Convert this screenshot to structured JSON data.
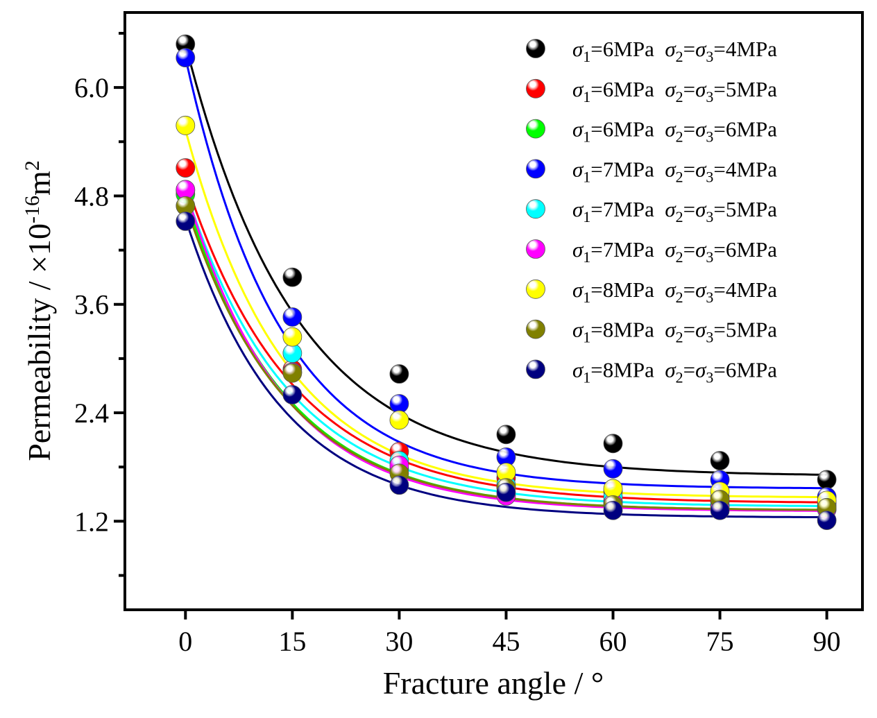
{
  "chart_data": {
    "type": "scatter",
    "title": "",
    "xlabel": "Fracture angle / °",
    "ylabel": {
      "main": "Permeability / ×10",
      "exp": "-16",
      "unit": "m",
      "unit_exp": "2"
    },
    "xlim": [
      -8.5,
      95
    ],
    "ylim": [
      0.22,
      6.83
    ],
    "x_ticks": [
      0,
      15,
      30,
      45,
      60,
      75,
      90
    ],
    "x_tick_labels": [
      "0",
      "15",
      "30",
      "45",
      "60",
      "75",
      "90"
    ],
    "y_ticks": [
      1.2,
      2.4,
      3.6,
      4.8,
      6.0
    ],
    "y_tick_labels": [
      "1.2",
      "2.4",
      "3.6",
      "4.8",
      "6.0"
    ],
    "y_minor_ticks": [
      0.6,
      1.8,
      3.0,
      4.2,
      5.4,
      6.6
    ],
    "grid": false,
    "legend_position": "top-right",
    "x": [
      0,
      15,
      30,
      45,
      60,
      75,
      90
    ],
    "series": [
      {
        "name": "σ1=6MPa σ2=σ3=4MPa",
        "s1": "6",
        "s23": "4",
        "color": "#000000",
        "values": [
          6.48,
          3.9,
          2.83,
          2.16,
          2.06,
          1.87,
          1.66
        ],
        "fit": {
          "a": 4.78,
          "b": 1.7,
          "tau": 15.5
        }
      },
      {
        "name": "σ1=6MPa σ2=σ3=5MPa",
        "s1": "6",
        "s23": "5",
        "color": "#ff0000",
        "values": [
          5.11,
          2.88,
          1.97,
          1.68,
          1.53,
          1.46,
          1.4
        ],
        "fit": {
          "a": 3.57,
          "b": 1.4,
          "tau": 15.0
        }
      },
      {
        "name": "σ1=6MPa σ2=σ3=6MPa",
        "s1": "6",
        "s23": "6",
        "color": "#00ff00",
        "values": [
          4.82,
          2.85,
          1.78,
          1.58,
          1.42,
          1.37,
          1.34
        ],
        "fit": {
          "a": 3.46,
          "b": 1.32,
          "tau": 14.0
        }
      },
      {
        "name": "σ1=7MPa σ2=σ3=4MPa",
        "s1": "7",
        "s23": "4",
        "color": "#0000ff",
        "values": [
          6.33,
          3.46,
          2.5,
          1.91,
          1.78,
          1.66,
          1.47
        ],
        "fit": {
          "a": 4.77,
          "b": 1.56,
          "tau": 13.5
        }
      },
      {
        "name": "σ1=7MPa σ2=σ3=5MPa",
        "s1": "7",
        "s23": "5",
        "color": "#00ffff",
        "values": [
          4.86,
          3.06,
          1.87,
          1.6,
          1.47,
          1.42,
          1.37
        ],
        "fit": {
          "a": 3.5,
          "b": 1.36,
          "tau": 14.5
        }
      },
      {
        "name": "σ1=7MPa σ2=σ3=6MPa",
        "s1": "7",
        "s23": "6",
        "color": "#ff00ff",
        "values": [
          4.87,
          2.85,
          1.82,
          1.48,
          1.4,
          1.35,
          1.33
        ],
        "fit": {
          "a": 3.56,
          "b": 1.31,
          "tau": 13.5
        }
      },
      {
        "name": "σ1=8MPa σ2=σ3=4MPa",
        "s1": "8",
        "s23": "4",
        "color": "#ffff00",
        "values": [
          5.58,
          3.24,
          2.32,
          1.74,
          1.56,
          1.53,
          1.43
        ],
        "fit": {
          "a": 4.07,
          "b": 1.46,
          "tau": 14.0
        }
      },
      {
        "name": "σ1=8MPa σ2=σ3=5MPa",
        "s1": "8",
        "s23": "5",
        "color": "#808000",
        "values": [
          4.69,
          2.84,
          1.73,
          1.57,
          1.38,
          1.44,
          1.35
        ],
        "fit": {
          "a": 3.39,
          "b": 1.32,
          "tau": 14.0
        }
      },
      {
        "name": "σ1=8MPa σ2=σ3=6MPa",
        "s1": "8",
        "s23": "6",
        "color": "#000080",
        "values": [
          4.52,
          2.6,
          1.6,
          1.52,
          1.32,
          1.32,
          1.21
        ],
        "fit": {
          "a": 3.31,
          "b": 1.24,
          "tau": 13.5
        }
      }
    ]
  }
}
